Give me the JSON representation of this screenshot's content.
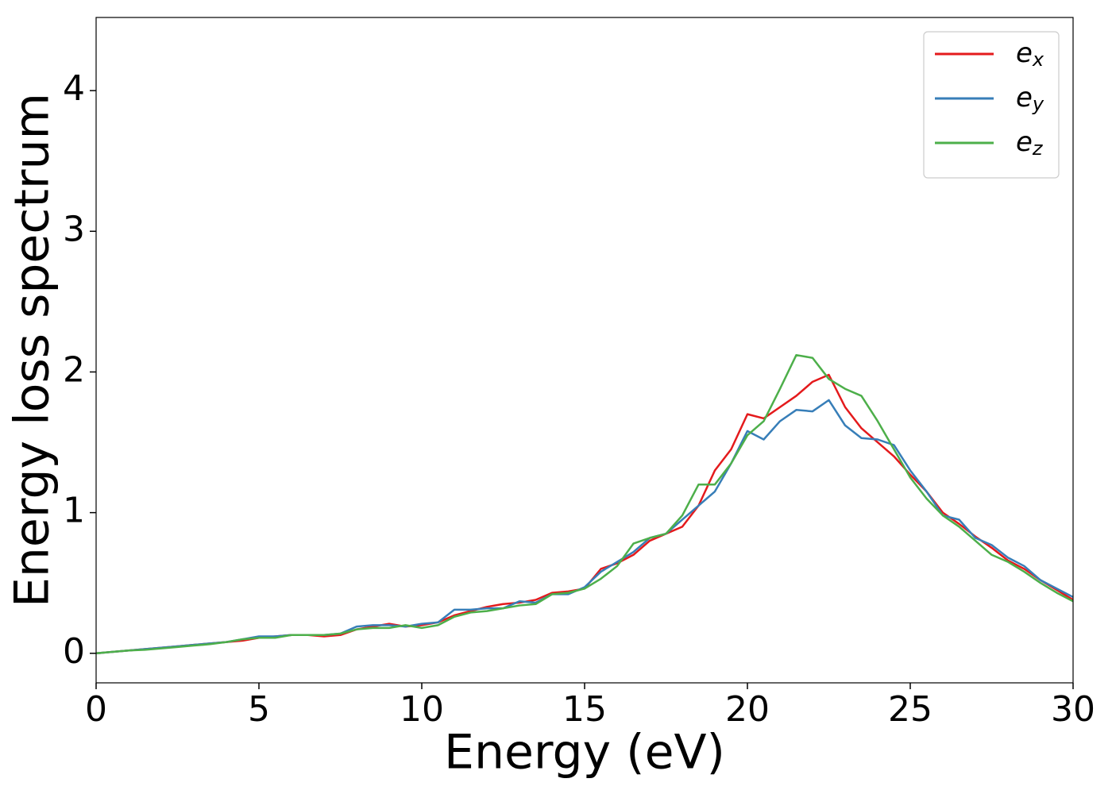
{
  "chart_data": {
    "type": "line",
    "xlabel": "Energy (eV)",
    "ylabel": "Energy loss spectrum",
    "x": [
      0,
      0.5,
      1,
      1.5,
      2,
      2.5,
      3,
      3.5,
      4,
      4.5,
      5,
      5.5,
      6,
      6.5,
      7,
      7.5,
      8,
      8.5,
      9,
      9.5,
      10,
      10.5,
      11,
      11.5,
      12,
      12.5,
      13,
      13.5,
      14,
      14.5,
      15,
      15.5,
      16,
      16.5,
      17,
      17.5,
      18,
      18.5,
      19,
      19.5,
      20,
      20.5,
      21,
      21.5,
      22,
      22.5,
      23,
      23.5,
      24,
      24.5,
      25,
      25.5,
      26,
      26.5,
      27,
      27.5,
      28,
      28.5,
      29,
      29.5,
      30
    ],
    "series": [
      {
        "name": "ex",
        "color": "#e41a1c",
        "values": [
          0,
          0.01,
          0.02,
          0.03,
          0.04,
          0.05,
          0.06,
          0.07,
          0.08,
          0.09,
          0.11,
          0.12,
          0.13,
          0.13,
          0.12,
          0.13,
          0.17,
          0.19,
          0.21,
          0.19,
          0.2,
          0.22,
          0.27,
          0.3,
          0.33,
          0.35,
          0.36,
          0.38,
          0.43,
          0.44,
          0.46,
          0.6,
          0.64,
          0.7,
          0.8,
          0.85,
          0.9,
          1.05,
          1.3,
          1.45,
          1.7,
          1.67,
          1.75,
          1.83,
          1.93,
          1.98,
          1.75,
          1.6,
          1.5,
          1.4,
          1.27,
          1.15,
          1.0,
          0.92,
          0.83,
          0.75,
          0.66,
          0.6,
          0.52,
          0.45,
          0.38
        ]
      },
      {
        "name": "ey",
        "color": "#377eb8",
        "values": [
          0,
          0.01,
          0.02,
          0.03,
          0.04,
          0.05,
          0.06,
          0.07,
          0.08,
          0.1,
          0.12,
          0.12,
          0.13,
          0.13,
          0.13,
          0.14,
          0.19,
          0.2,
          0.2,
          0.19,
          0.21,
          0.22,
          0.31,
          0.31,
          0.32,
          0.32,
          0.37,
          0.36,
          0.42,
          0.42,
          0.47,
          0.58,
          0.65,
          0.72,
          0.82,
          0.85,
          0.95,
          1.05,
          1.15,
          1.35,
          1.58,
          1.52,
          1.65,
          1.73,
          1.72,
          1.8,
          1.62,
          1.53,
          1.52,
          1.48,
          1.3,
          1.15,
          0.98,
          0.95,
          0.82,
          0.77,
          0.68,
          0.62,
          0.52,
          0.46,
          0.4
        ]
      },
      {
        "name": "ez",
        "color": "#4daf4a",
        "values": [
          0,
          0.01,
          0.02,
          0.025,
          0.035,
          0.045,
          0.055,
          0.065,
          0.08,
          0.1,
          0.11,
          0.11,
          0.13,
          0.13,
          0.13,
          0.14,
          0.17,
          0.18,
          0.18,
          0.2,
          0.18,
          0.2,
          0.26,
          0.29,
          0.3,
          0.32,
          0.34,
          0.35,
          0.42,
          0.43,
          0.46,
          0.53,
          0.62,
          0.78,
          0.82,
          0.85,
          0.98,
          1.2,
          1.2,
          1.35,
          1.55,
          1.65,
          1.88,
          2.12,
          2.1,
          1.95,
          1.88,
          1.83,
          1.65,
          1.45,
          1.25,
          1.1,
          0.98,
          0.9,
          0.8,
          0.7,
          0.65,
          0.58,
          0.5,
          0.43,
          0.37
        ]
      }
    ],
    "xlim": [
      0,
      30
    ],
    "xticks": [
      0,
      5,
      10,
      15,
      20,
      25,
      30
    ],
    "ylim": [
      -0.21,
      4.52
    ],
    "yticks": [
      0,
      1,
      2,
      3,
      4
    ],
    "legend": "upper right"
  }
}
